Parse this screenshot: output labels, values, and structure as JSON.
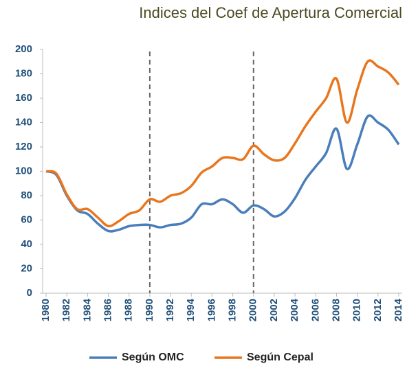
{
  "chart_data": {
    "type": "line",
    "title": "Indices del Coef de Apertura Comercial",
    "x": [
      1980,
      1981,
      1982,
      1983,
      1984,
      1985,
      1986,
      1987,
      1988,
      1989,
      1990,
      1991,
      1992,
      1993,
      1994,
      1995,
      1996,
      1997,
      1998,
      1999,
      2000,
      2001,
      2002,
      2003,
      2004,
      2005,
      2006,
      2007,
      2008,
      2009,
      2010,
      2011,
      2012,
      2013,
      2014
    ],
    "series": [
      {
        "name": "Según OMC",
        "color": "#4a7ebb",
        "values": [
          100,
          97,
          80,
          68,
          65,
          57,
          51,
          52,
          55,
          56,
          56,
          54,
          56,
          57,
          62,
          73,
          73,
          77,
          73,
          66,
          72,
          69,
          63,
          67,
          78,
          93,
          104,
          115,
          135,
          102,
          122,
          145,
          140,
          134,
          122
        ]
      },
      {
        "name": "Según Cepal",
        "color": "#e8761e",
        "values": [
          100,
          98,
          81,
          69,
          69,
          62,
          55,
          59,
          65,
          68,
          77,
          75,
          80,
          82,
          88,
          99,
          104,
          111,
          111,
          110,
          121,
          114,
          109,
          111,
          123,
          137,
          149,
          160,
          176,
          140,
          167,
          190,
          186,
          181,
          171
        ]
      }
    ],
    "xlim": [
      1980,
      2014
    ],
    "xticks": [
      1980,
      1982,
      1984,
      1986,
      1988,
      1990,
      1992,
      1994,
      1996,
      1998,
      2000,
      2002,
      2004,
      2006,
      2008,
      2010,
      2012,
      2014
    ],
    "ylim": [
      0,
      200
    ],
    "yticks": [
      0,
      20,
      40,
      60,
      80,
      100,
      120,
      140,
      160,
      180,
      200
    ],
    "reference_lines_x": [
      1990,
      2000
    ],
    "grid": false,
    "legend": "bottom"
  }
}
